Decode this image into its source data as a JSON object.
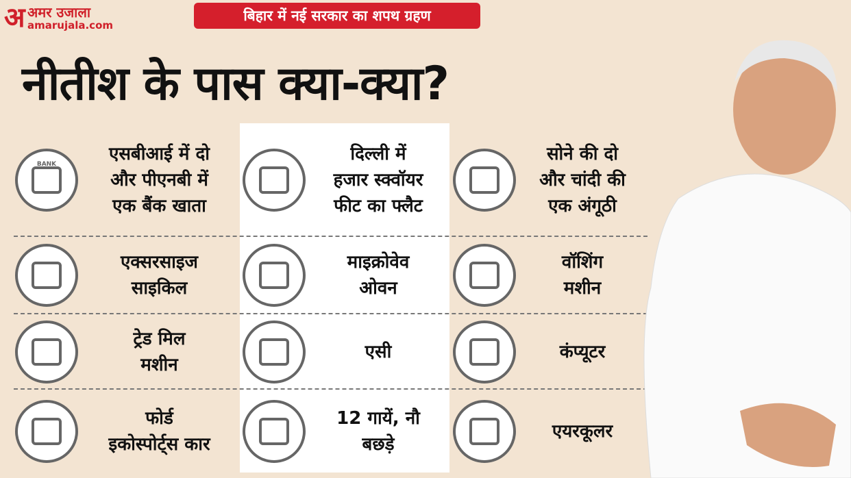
{
  "header": {
    "logo_mark": "अ",
    "logo_name": "अमर उजाला",
    "logo_site": "amarujala.com",
    "tag": "बिहार में नई सरकार का शपथ ग्रहण"
  },
  "title": "नीतीश के पास क्या-क्या?",
  "items": [
    {
      "icon_text": "BANK",
      "label": [
        "एसबीआई में दो",
        "और पीएनबी में",
        "एक बैंक खाता"
      ]
    },
    {
      "label": [
        "दिल्ली में",
        "हजार स्क्वॉयर",
        "फीट का फ्लैट"
      ]
    },
    {
      "label": [
        "सोने की दो",
        "और चांदी की",
        "एक अंगूठी"
      ]
    },
    {
      "label": [
        "एक्सरसाइज",
        "साइकिल"
      ]
    },
    {
      "label": [
        "माइक्रोवेव",
        "ओवन"
      ]
    },
    {
      "label": [
        "वॉशिंग",
        "मशीन"
      ]
    },
    {
      "label": [
        "ट्रेड मिल",
        "मशीन"
      ]
    },
    {
      "label": [
        "एसी"
      ]
    },
    {
      "label": [
        "कंप्यूटर"
      ]
    },
    {
      "label": [
        "फोर्ड",
        "इकोस्पोर्ट्स कार"
      ]
    },
    {
      "label": [
        "12 गायें, नौ",
        "बछड़े"
      ]
    },
    {
      "label": [
        "एयरकूलर"
      ]
    }
  ]
}
